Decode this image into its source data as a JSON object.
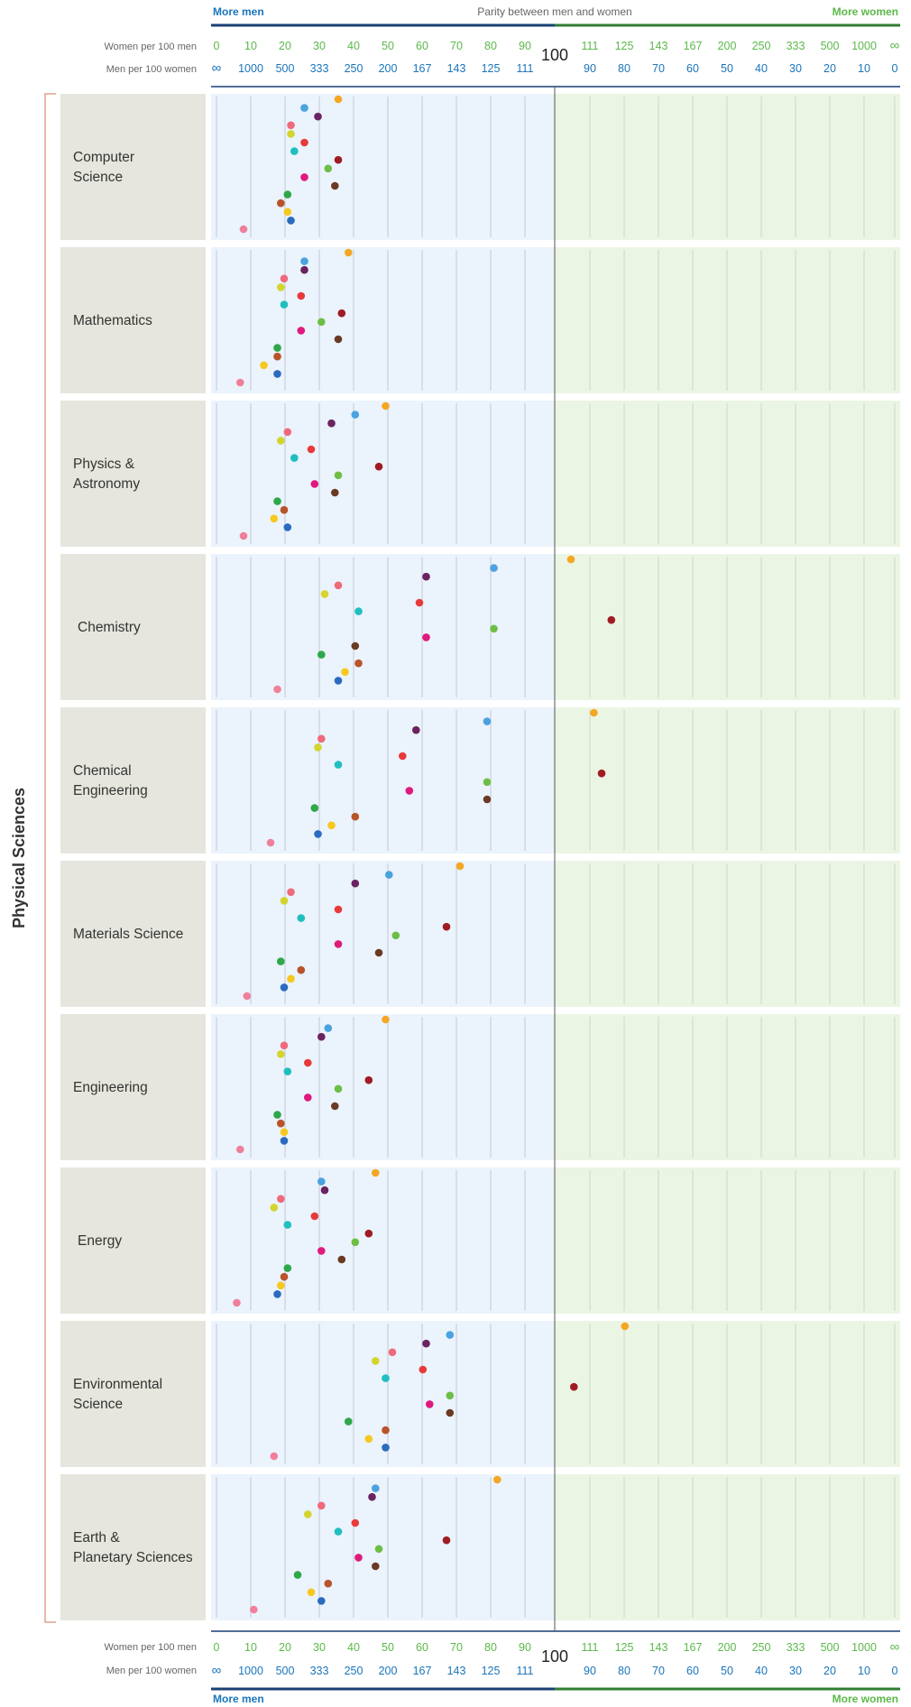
{
  "header": {
    "more_men": "More men",
    "parity": "Parity between men and women",
    "more_women": "More women"
  },
  "axis": {
    "row1_label": "Women per 100 men",
    "row2_label": "Men per 100 women",
    "center_label": "100",
    "women_per_100_men_ticks": [
      "0",
      "10",
      "20",
      "30",
      "40",
      "50",
      "60",
      "70",
      "80",
      "90",
      "111",
      "125",
      "143",
      "167",
      "200",
      "250",
      "333",
      "500",
      "1000",
      "∞"
    ],
    "men_per_100_women_ticks": [
      "∞",
      "1000",
      "500",
      "333",
      "250",
      "200",
      "167",
      "143",
      "125",
      "111",
      "90",
      "80",
      "70",
      "60",
      "50",
      "40",
      "30",
      "20",
      "10",
      "0"
    ]
  },
  "group_label": "Physical Sciences",
  "colors": {
    "men_side_bg": "#ebf3fc",
    "women_side_bg": "#ebf5e3",
    "label_bg": "#e6e6de",
    "men_accent": "#1a75bb",
    "women_accent": "#5bb84a",
    "bracket": "#e0a090"
  },
  "chart_data": {
    "type": "scatter",
    "x_measure": "Women per 100 men",
    "x_scale": "ratio: 0-100 linear on the left half; right half linear in men per 100 women (100 down to 0)",
    "series_colors": [
      "#f5a623",
      "#4aa3df",
      "#6a2360",
      "#ef6a7a",
      "#d4d42e",
      "#e83a3a",
      "#1fbfbf",
      "#a01c24",
      "#6cbf45",
      "#e0197d",
      "#6a3a22",
      "#2ea84a",
      "#b8532a",
      "#f7c81e",
      "#2a6bbf",
      "#f07f9a"
    ],
    "panels": [
      {
        "name": "Computer Science",
        "values": [
          36,
          26,
          30,
          22,
          22,
          26,
          23,
          36,
          33,
          26,
          35,
          21,
          19,
          21,
          22,
          8
        ]
      },
      {
        "name": "Mathematics",
        "values": [
          39,
          26,
          26,
          20,
          19,
          25,
          20,
          37,
          31,
          25,
          36,
          18,
          18,
          14,
          18,
          7
        ]
      },
      {
        "name": "Physics & Astronomy",
        "values": [
          50,
          41,
          34,
          21,
          19,
          28,
          23,
          48,
          36,
          29,
          35,
          18,
          20,
          17,
          21,
          8
        ]
      },
      {
        "name": "Chemistry",
        "values": [
          105,
          82,
          62,
          36,
          32,
          60,
          42,
          120,
          82,
          62,
          41,
          31,
          42,
          38,
          36,
          18
        ]
      },
      {
        "name": "Chemical Engineering",
        "values": [
          113,
          80,
          59,
          31,
          30,
          55,
          36,
          116,
          80,
          57,
          80,
          29,
          41,
          34,
          30,
          16
        ]
      },
      {
        "name": "Materials Science",
        "values": [
          72,
          51,
          41,
          22,
          20,
          36,
          25,
          68,
          53,
          36,
          48,
          19,
          25,
          22,
          20,
          9
        ]
      },
      {
        "name": "Engineering",
        "values": [
          50,
          33,
          31,
          20,
          19,
          27,
          21,
          45,
          36,
          27,
          35,
          18,
          19,
          20,
          20,
          7
        ]
      },
      {
        "name": "Energy",
        "values": [
          47,
          31,
          32,
          19,
          17,
          29,
          21,
          45,
          41,
          31,
          37,
          21,
          20,
          19,
          18,
          6
        ]
      },
      {
        "name": "Environmental Science",
        "values": [
          126,
          69,
          62,
          52,
          47,
          61,
          50,
          106,
          69,
          63,
          69,
          39,
          50,
          45,
          50,
          17
        ]
      },
      {
        "name": "Earth & Planetary Sciences",
        "values": [
          83,
          47,
          46,
          31,
          27,
          41,
          36,
          68,
          48,
          42,
          47,
          24,
          33,
          28,
          31,
          11
        ]
      }
    ]
  }
}
